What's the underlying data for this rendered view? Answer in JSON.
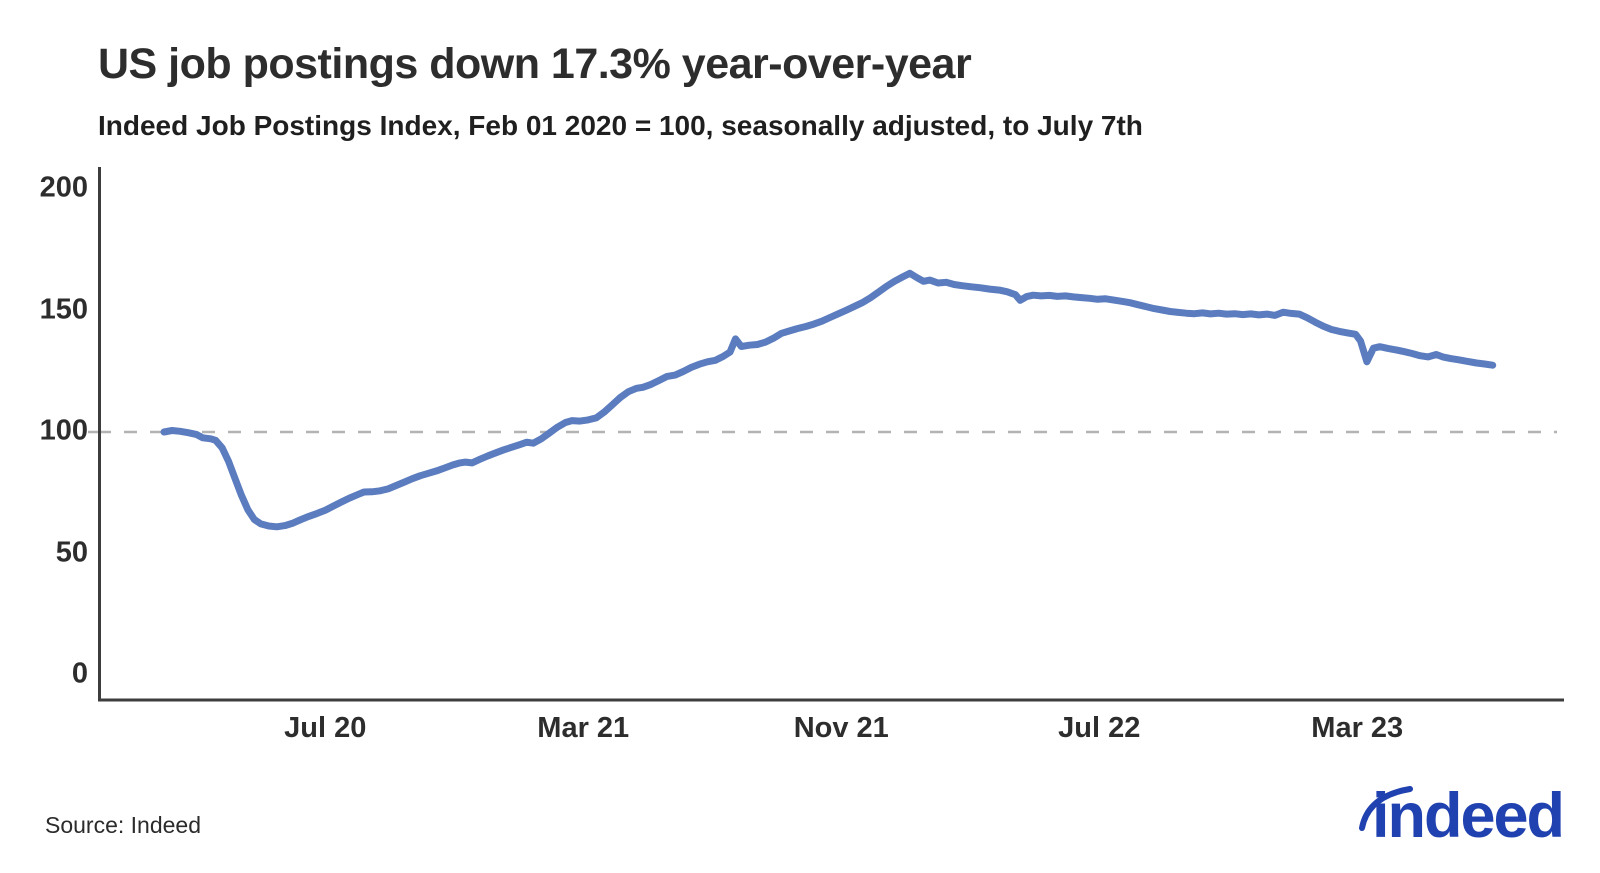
{
  "header": {
    "title": "US job postings down 17.3% year-over-year",
    "subtitle": "Indeed Job Postings Index, Feb 01 2020 = 100, seasonally adjusted, to July 7th"
  },
  "footer": {
    "source": "Source: Indeed"
  },
  "logo": {
    "text": "indeed",
    "color": "#2041b0"
  },
  "colors": {
    "line": "#5b7cbe",
    "axis": "#3d3d3d",
    "reference_dash": "#b3b3b3",
    "text": "#2d2d2d"
  },
  "chart_data": {
    "type": "line",
    "title": "US job postings down 17.3% year-over-year",
    "subtitle": "Indeed Job Postings Index, Feb 01 2020 = 100, seasonally adjusted, to July 7th",
    "series_name": "Indeed Job Postings Index (US, seasonally adjusted)",
    "index_base": "Feb 01 2020 = 100",
    "x_unit": "months since Feb 01 2020",
    "x_range_labels": [
      "Feb 01 2020",
      "Jul 07 2023"
    ],
    "ylim": [
      0,
      200
    ],
    "y_ticks": [
      0,
      50,
      100,
      150,
      200
    ],
    "x_ticks": [
      {
        "label": "Jul 20",
        "month": 5
      },
      {
        "label": "Mar 21",
        "month": 13
      },
      {
        "label": "Nov 21",
        "month": 21
      },
      {
        "label": "Jul 22",
        "month": 29
      },
      {
        "label": "Mar 23",
        "month": 37
      }
    ],
    "reference_line": 100,
    "grid": "single dashed horizontal reference line at 100",
    "legend": "none",
    "line_color": "#5b7cbe",
    "final_value": 127.5,
    "yoy_change_pct": -17.3,
    "points": [
      [
        0,
        100
      ],
      [
        0.25,
        100.6
      ],
      [
        0.5,
        100.3
      ],
      [
        0.75,
        99.7
      ],
      [
        1.0,
        99
      ],
      [
        1.2,
        97.6
      ],
      [
        1.45,
        97.2
      ],
      [
        1.6,
        96.6
      ],
      [
        1.8,
        93.5
      ],
      [
        2.0,
        88
      ],
      [
        2.2,
        81
      ],
      [
        2.4,
        74
      ],
      [
        2.6,
        68
      ],
      [
        2.8,
        64
      ],
      [
        3.0,
        62.2
      ],
      [
        3.25,
        61.3
      ],
      [
        3.5,
        61
      ],
      [
        3.75,
        61.5
      ],
      [
        4.0,
        62.5
      ],
      [
        4.25,
        64
      ],
      [
        4.5,
        65.3
      ],
      [
        4.75,
        66.5
      ],
      [
        5.0,
        67.8
      ],
      [
        5.25,
        69.5
      ],
      [
        5.5,
        71.2
      ],
      [
        5.75,
        72.8
      ],
      [
        6.0,
        74.2
      ],
      [
        6.2,
        75.3
      ],
      [
        6.45,
        75.4
      ],
      [
        6.7,
        75.8
      ],
      [
        6.95,
        76.6
      ],
      [
        7.2,
        78
      ],
      [
        7.45,
        79.4
      ],
      [
        7.7,
        80.8
      ],
      [
        7.95,
        82
      ],
      [
        8.2,
        83
      ],
      [
        8.45,
        84
      ],
      [
        8.7,
        85.2
      ],
      [
        8.95,
        86.4
      ],
      [
        9.15,
        87.2
      ],
      [
        9.35,
        87.6
      ],
      [
        9.55,
        87.3
      ],
      [
        9.8,
        88.8
      ],
      [
        10.05,
        90.2
      ],
      [
        10.3,
        91.5
      ],
      [
        10.55,
        92.7
      ],
      [
        10.8,
        93.8
      ],
      [
        11.05,
        94.9
      ],
      [
        11.25,
        95.8
      ],
      [
        11.45,
        95.4
      ],
      [
        11.7,
        97.2
      ],
      [
        11.95,
        99.6
      ],
      [
        12.2,
        102
      ],
      [
        12.45,
        103.9
      ],
      [
        12.65,
        104.7
      ],
      [
        12.9,
        104.5
      ],
      [
        13.15,
        105
      ],
      [
        13.4,
        105.8
      ],
      [
        13.65,
        108.2
      ],
      [
        13.9,
        111.2
      ],
      [
        14.15,
        114.2
      ],
      [
        14.4,
        116.6
      ],
      [
        14.65,
        118
      ],
      [
        14.85,
        118.4
      ],
      [
        15.1,
        119.6
      ],
      [
        15.35,
        121.2
      ],
      [
        15.6,
        122.9
      ],
      [
        15.85,
        123.4
      ],
      [
        16.1,
        124.9
      ],
      [
        16.35,
        126.6
      ],
      [
        16.6,
        127.9
      ],
      [
        16.85,
        128.9
      ],
      [
        17.1,
        129.5
      ],
      [
        17.35,
        131.2
      ],
      [
        17.55,
        132.9
      ],
      [
        17.72,
        138.3
      ],
      [
        17.9,
        135.2
      ],
      [
        18.15,
        135.7
      ],
      [
        18.4,
        136
      ],
      [
        18.65,
        137
      ],
      [
        18.9,
        138.6
      ],
      [
        19.15,
        140.6
      ],
      [
        19.4,
        141.6
      ],
      [
        19.65,
        142.6
      ],
      [
        19.9,
        143.4
      ],
      [
        20.15,
        144.4
      ],
      [
        20.4,
        145.6
      ],
      [
        20.65,
        147.1
      ],
      [
        20.9,
        148.6
      ],
      [
        21.15,
        150.1
      ],
      [
        21.4,
        151.6
      ],
      [
        21.65,
        153.2
      ],
      [
        21.9,
        155.2
      ],
      [
        22.15,
        157.5
      ],
      [
        22.4,
        159.9
      ],
      [
        22.65,
        162
      ],
      [
        22.9,
        163.8
      ],
      [
        23.13,
        165.3
      ],
      [
        23.35,
        163.5
      ],
      [
        23.55,
        162
      ],
      [
        23.75,
        162.5
      ],
      [
        24.0,
        161.3
      ],
      [
        24.25,
        161.6
      ],
      [
        24.5,
        160.7
      ],
      [
        24.75,
        160.2
      ],
      [
        25.0,
        159.8
      ],
      [
        25.3,
        159.4
      ],
      [
        25.6,
        158.8
      ],
      [
        25.9,
        158.4
      ],
      [
        26.15,
        157.7
      ],
      [
        26.4,
        156.5
      ],
      [
        26.55,
        154.2
      ],
      [
        26.75,
        155.7
      ],
      [
        26.95,
        156.3
      ],
      [
        27.2,
        156
      ],
      [
        27.45,
        156.2
      ],
      [
        27.7,
        155.8
      ],
      [
        27.95,
        156
      ],
      [
        28.2,
        155.6
      ],
      [
        28.45,
        155.3
      ],
      [
        28.7,
        155
      ],
      [
        28.95,
        154.6
      ],
      [
        29.2,
        154.8
      ],
      [
        29.45,
        154.3
      ],
      [
        29.7,
        153.8
      ],
      [
        29.95,
        153.2
      ],
      [
        30.2,
        152.4
      ],
      [
        30.45,
        151.6
      ],
      [
        30.7,
        150.8
      ],
      [
        30.95,
        150.2
      ],
      [
        31.2,
        149.6
      ],
      [
        31.45,
        149.2
      ],
      [
        31.7,
        148.9
      ],
      [
        31.95,
        148.7
      ],
      [
        32.2,
        149
      ],
      [
        32.45,
        148.6
      ],
      [
        32.7,
        148.9
      ],
      [
        32.95,
        148.5
      ],
      [
        33.2,
        148.7
      ],
      [
        33.45,
        148.3
      ],
      [
        33.7,
        148.6
      ],
      [
        33.95,
        148.2
      ],
      [
        34.2,
        148.5
      ],
      [
        34.45,
        148
      ],
      [
        34.7,
        149.3
      ],
      [
        34.95,
        148.8
      ],
      [
        35.2,
        148.5
      ],
      [
        35.45,
        147
      ],
      [
        35.7,
        145.2
      ],
      [
        35.95,
        143.5
      ],
      [
        36.2,
        142.2
      ],
      [
        36.45,
        141.4
      ],
      [
        36.7,
        140.8
      ],
      [
        36.95,
        140.2
      ],
      [
        37.1,
        137.5
      ],
      [
        37.3,
        128.9
      ],
      [
        37.5,
        134.5
      ],
      [
        37.7,
        135.1
      ],
      [
        37.95,
        134.4
      ],
      [
        38.2,
        133.8
      ],
      [
        38.45,
        133.1
      ],
      [
        38.7,
        132.3
      ],
      [
        38.95,
        131.4
      ],
      [
        39.2,
        130.9
      ],
      [
        39.45,
        131.9
      ],
      [
        39.65,
        130.9
      ],
      [
        39.9,
        130.2
      ],
      [
        40.15,
        129.7
      ],
      [
        40.4,
        129.1
      ],
      [
        40.7,
        128.4
      ],
      [
        40.95,
        128
      ],
      [
        41.2,
        127.5
      ]
    ]
  }
}
